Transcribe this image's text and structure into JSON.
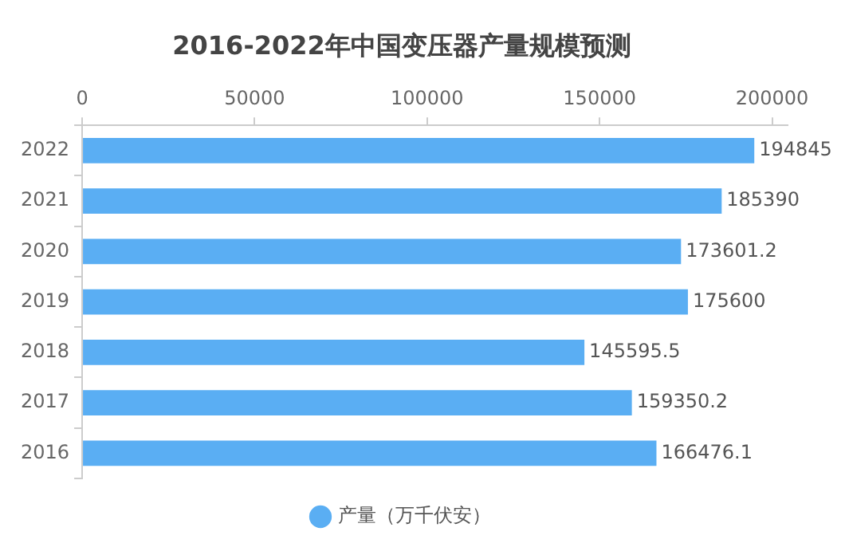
{
  "chart_data": {
    "type": "bar",
    "orientation": "horizontal",
    "title": "2016-2022年中国变压器产量规模预测",
    "categories": [
      "2022",
      "2021",
      "2020",
      "2019",
      "2018",
      "2017",
      "2016"
    ],
    "series": [
      {
        "name": "产量（万千伏安）",
        "color": "#5aaef3",
        "values": [
          194845,
          185390,
          173601.2,
          175600,
          145595.5,
          159350.2,
          166476.1
        ]
      }
    ],
    "xlim": [
      0,
      204500
    ],
    "xticks": [
      0,
      50000,
      100000,
      150000,
      200000
    ],
    "grid": false,
    "legend": "bottom",
    "data_labels": true
  }
}
